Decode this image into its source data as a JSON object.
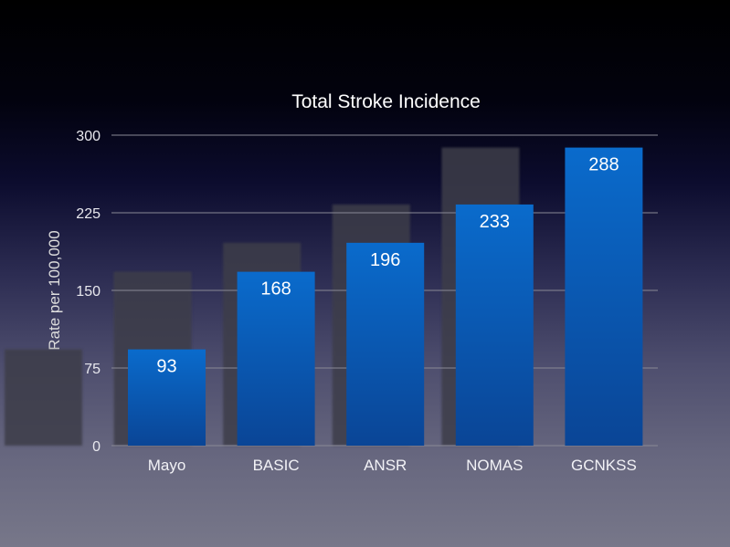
{
  "chart_data": {
    "type": "bar",
    "title": "Total Stroke Incidence",
    "xlabel": "",
    "ylabel": "Rate per 100,000",
    "categories": [
      "Mayo",
      "BASIC",
      "ANSR",
      "NOMAS",
      "GCNKSS"
    ],
    "values": [
      93,
      168,
      196,
      233,
      288
    ],
    "ylim": [
      0,
      300
    ],
    "yticks": [
      0,
      75,
      150,
      225,
      300
    ],
    "grid": true,
    "data_labels": true,
    "colors": {
      "bar_top": "#0a6bcc",
      "bar_bottom": "#0a4596",
      "ghost_bar": "#3d3d48",
      "grid": "#8a8a96"
    }
  }
}
